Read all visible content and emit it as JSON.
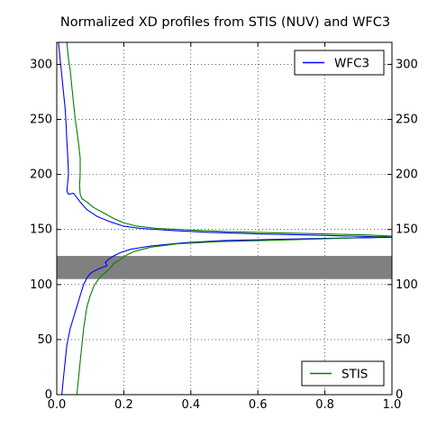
{
  "chart_data": {
    "type": "line",
    "title": "Normalized XD profiles from STIS (NUV) and WFC3",
    "xlabel": "",
    "ylabel": "",
    "xlim": [
      0.0,
      1.0
    ],
    "ylim": [
      0,
      320
    ],
    "xticks": [
      0.0,
      0.2,
      0.4,
      0.6,
      0.8,
      1.0
    ],
    "xtick_labels": [
      "0.0",
      "0.2",
      "0.4",
      "0.6",
      "0.8",
      "1.0"
    ],
    "yticks": [
      0,
      50,
      100,
      150,
      200,
      250,
      300
    ],
    "ytick_labels": [
      "0",
      "50",
      "100",
      "150",
      "200",
      "250",
      "300"
    ],
    "grid": true,
    "legends": [
      {
        "label": "WFC3",
        "color": "#0000ff",
        "placement": "upper right"
      },
      {
        "label": "STIS",
        "color": "#008000",
        "placement": "lower right"
      }
    ],
    "shaded_band": {
      "y_from": 105,
      "y_to": 126,
      "color": "#808080"
    },
    "series": [
      {
        "name": "WFC3",
        "color": "#0000ff",
        "points": [
          [
            0.005,
            320
          ],
          [
            0.01,
            305
          ],
          [
            0.015,
            290
          ],
          [
            0.02,
            275
          ],
          [
            0.025,
            260
          ],
          [
            0.028,
            245
          ],
          [
            0.03,
            230
          ],
          [
            0.033,
            215
          ],
          [
            0.035,
            200
          ],
          [
            0.03,
            185
          ],
          [
            0.035,
            182
          ],
          [
            0.05,
            183
          ],
          [
            0.07,
            175
          ],
          [
            0.09,
            168
          ],
          [
            0.12,
            162
          ],
          [
            0.16,
            157
          ],
          [
            0.2,
            153
          ],
          [
            0.25,
            151
          ],
          [
            0.35,
            149
          ],
          [
            0.45,
            147.5
          ],
          [
            0.6,
            146
          ],
          [
            0.75,
            145
          ],
          [
            0.88,
            144
          ],
          [
            0.95,
            143.5
          ],
          [
            1.0,
            143
          ],
          [
            0.92,
            142.5
          ],
          [
            0.8,
            142
          ],
          [
            0.65,
            141
          ],
          [
            0.5,
            140
          ],
          [
            0.38,
            138
          ],
          [
            0.28,
            135
          ],
          [
            0.22,
            132
          ],
          [
            0.19,
            129
          ],
          [
            0.17,
            126
          ],
          [
            0.155,
            123
          ],
          [
            0.145,
            120
          ],
          [
            0.15,
            117
          ],
          [
            0.13,
            115
          ],
          [
            0.11,
            112
          ],
          [
            0.1,
            110
          ],
          [
            0.09,
            106
          ],
          [
            0.08,
            100
          ],
          [
            0.07,
            90
          ],
          [
            0.06,
            80
          ],
          [
            0.05,
            70
          ],
          [
            0.04,
            60
          ],
          [
            0.03,
            45
          ],
          [
            0.025,
            30
          ],
          [
            0.02,
            15
          ],
          [
            0.015,
            0
          ]
        ]
      },
      {
        "name": "STIS",
        "color": "#008000",
        "points": [
          [
            0.03,
            320
          ],
          [
            0.035,
            305
          ],
          [
            0.04,
            295
          ],
          [
            0.045,
            280
          ],
          [
            0.05,
            265
          ],
          [
            0.055,
            250
          ],
          [
            0.06,
            240
          ],
          [
            0.065,
            228
          ],
          [
            0.07,
            215
          ],
          [
            0.07,
            200
          ],
          [
            0.068,
            190
          ],
          [
            0.07,
            182
          ],
          [
            0.075,
            178
          ],
          [
            0.09,
            175
          ],
          [
            0.11,
            170
          ],
          [
            0.14,
            165
          ],
          [
            0.17,
            160
          ],
          [
            0.2,
            156
          ],
          [
            0.24,
            153
          ],
          [
            0.3,
            151
          ],
          [
            0.4,
            149.5
          ],
          [
            0.52,
            148
          ],
          [
            0.66,
            147
          ],
          [
            0.8,
            146
          ],
          [
            0.93,
            145
          ],
          [
            1.0,
            144
          ],
          [
            0.93,
            143
          ],
          [
            0.85,
            142
          ],
          [
            0.74,
            141
          ],
          [
            0.62,
            140
          ],
          [
            0.48,
            139
          ],
          [
            0.36,
            137
          ],
          [
            0.28,
            134
          ],
          [
            0.23,
            130
          ],
          [
            0.21,
            127
          ],
          [
            0.19,
            123
          ],
          [
            0.17,
            119
          ],
          [
            0.16,
            115
          ],
          [
            0.145,
            111
          ],
          [
            0.13,
            107
          ],
          [
            0.12,
            103
          ],
          [
            0.11,
            98
          ],
          [
            0.1,
            90
          ],
          [
            0.09,
            80
          ],
          [
            0.085,
            70
          ],
          [
            0.08,
            60
          ],
          [
            0.075,
            45
          ],
          [
            0.07,
            30
          ],
          [
            0.065,
            15
          ],
          [
            0.06,
            0
          ]
        ]
      }
    ]
  }
}
